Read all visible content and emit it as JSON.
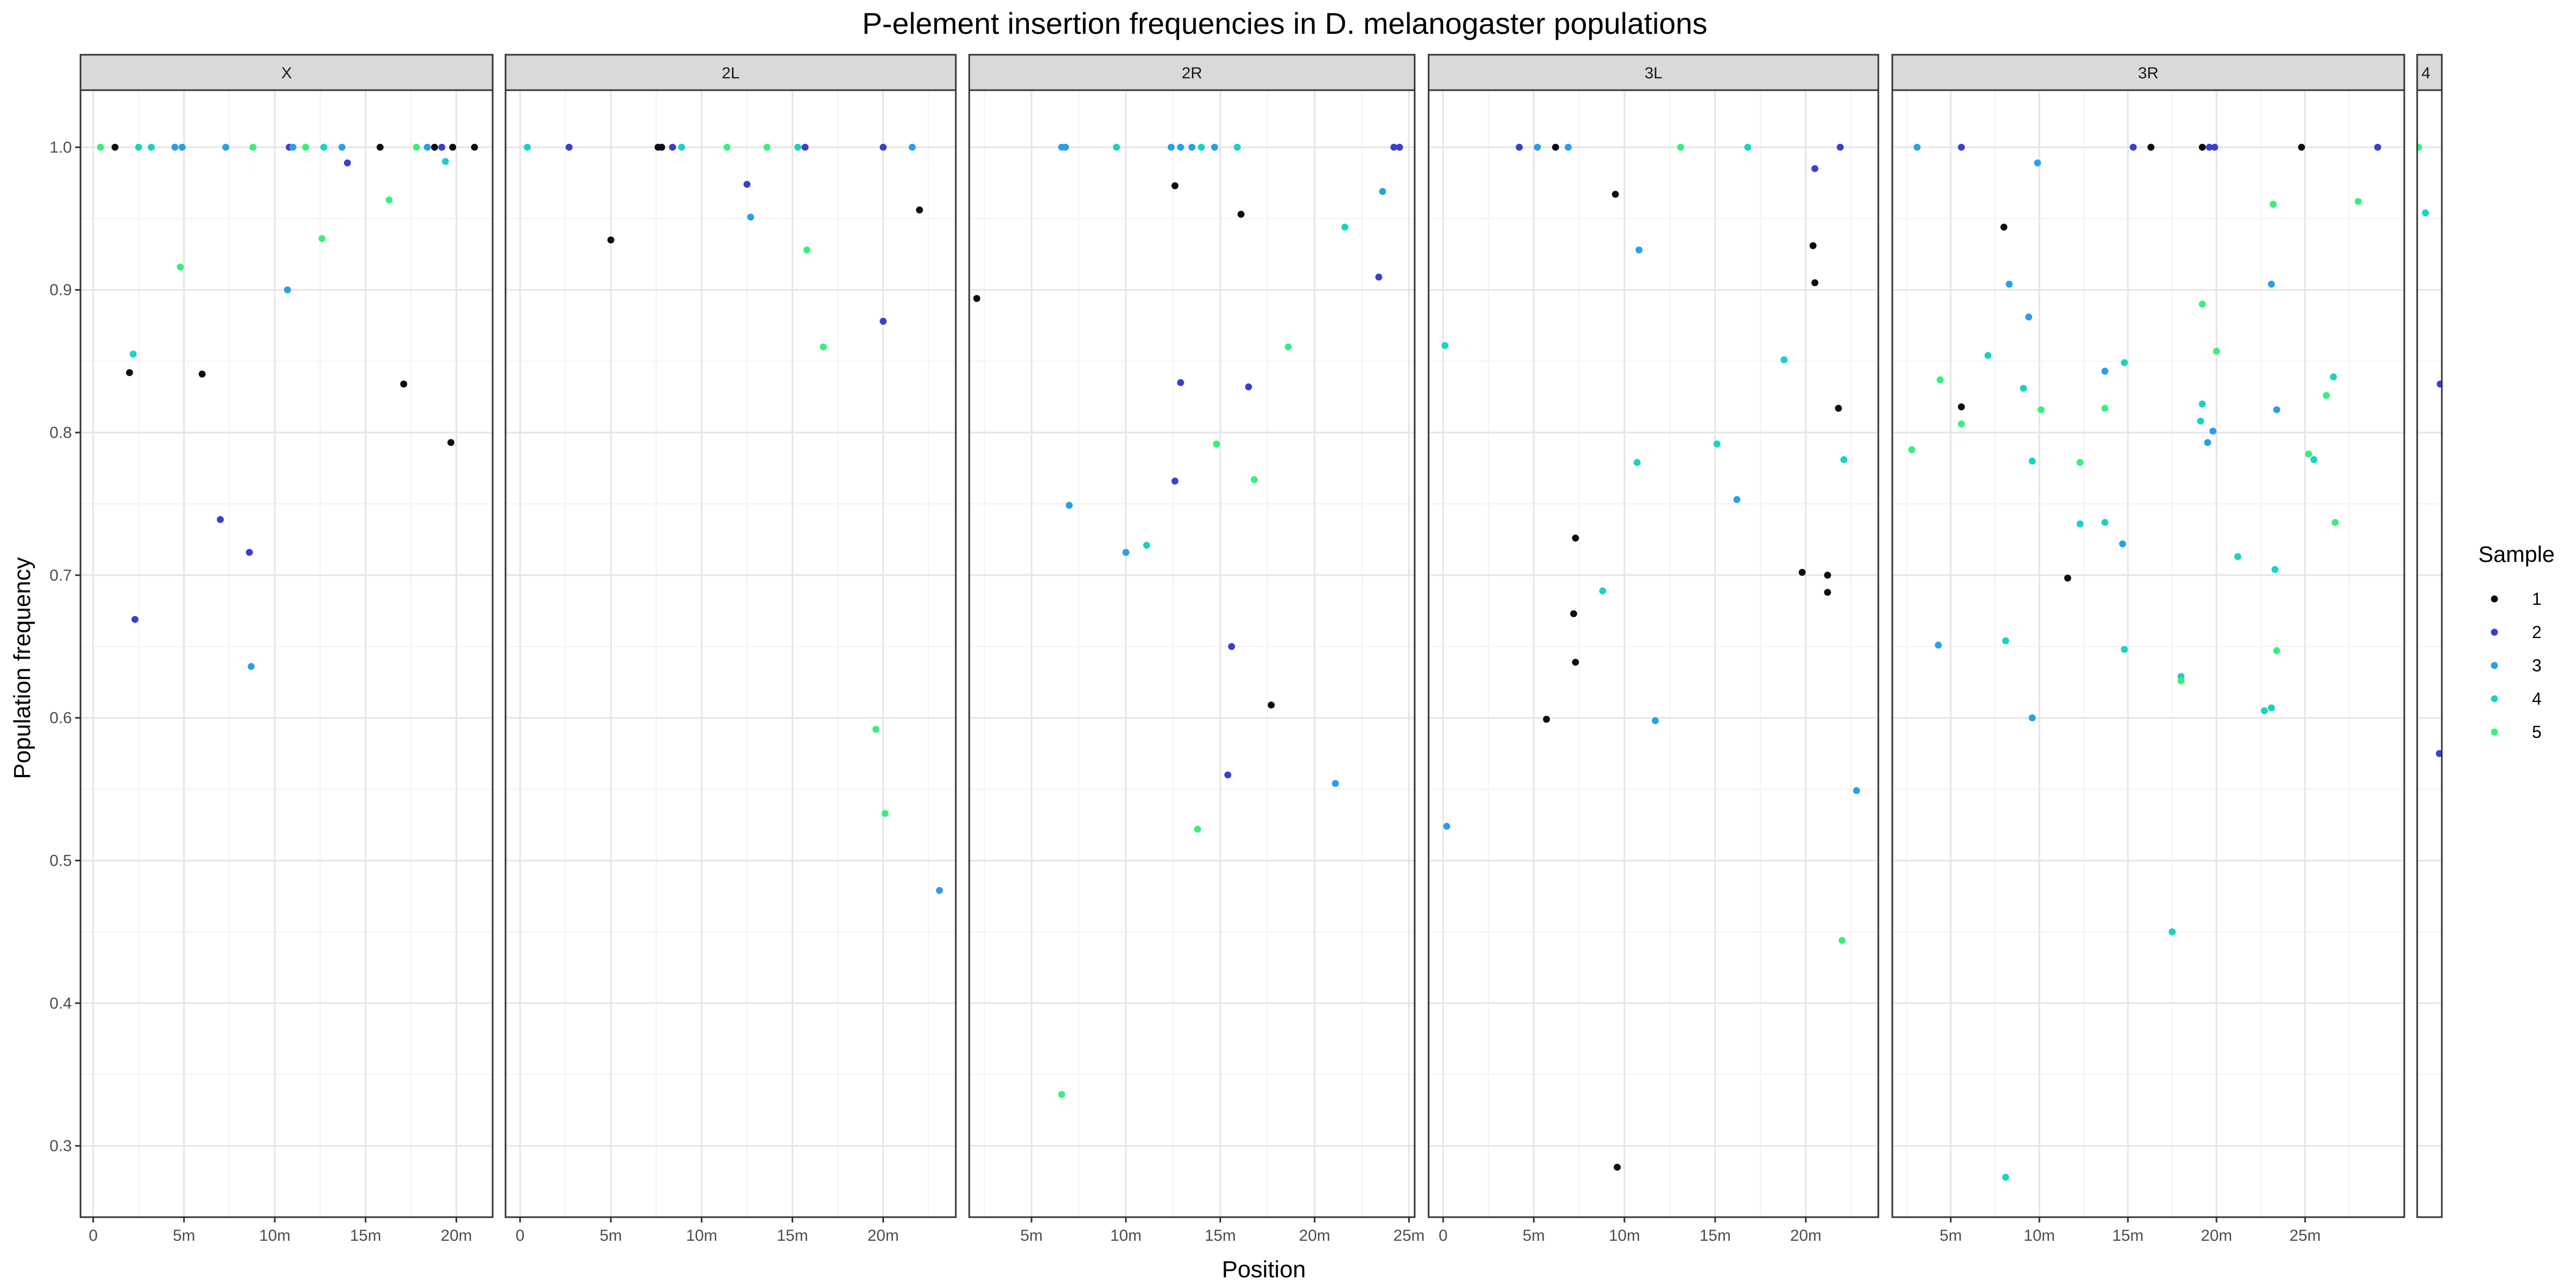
{
  "chart_data": {
    "type": "scatter",
    "title": "P-element insertion frequencies in D. melanogaster populations",
    "xlabel": "Position",
    "ylabel": "Population frequency",
    "ylim": [
      0.25,
      1.04
    ],
    "yticks": [
      0.3,
      0.4,
      0.5,
      0.6,
      0.7,
      0.8,
      0.9,
      1.0
    ],
    "ytick_labels": [
      "0.3",
      "0.4",
      "0.5",
      "0.6",
      "0.7",
      "0.8",
      "0.9",
      "1.0"
    ],
    "grid": true,
    "legend": {
      "title": "Sample",
      "position": "right",
      "entries": [
        {
          "label": "1",
          "color": "#0d0d1a"
        },
        {
          "label": "2",
          "color": "#3a3fce"
        },
        {
          "label": "3",
          "color": "#2a9fe6"
        },
        {
          "label": "4",
          "color": "#18d3c0"
        },
        {
          "label": "5",
          "color": "#38ef7d"
        }
      ]
    },
    "panels": [
      {
        "label": "X",
        "xlim": [
          -0.7,
          22.0
        ],
        "xticks": [
          0,
          5,
          10,
          15,
          20
        ],
        "xtick_labels": [
          "0",
          "5m",
          "10m",
          "15m",
          "20m"
        ],
        "points": [
          {
            "x": 1.2,
            "y": 1.0,
            "s": 1
          },
          {
            "x": 0.4,
            "y": 1.0,
            "s": 5
          },
          {
            "x": 2.5,
            "y": 1.0,
            "s": 4
          },
          {
            "x": 3.2,
            "y": 1.0,
            "s": 4
          },
          {
            "x": 4.5,
            "y": 1.0,
            "s": 3
          },
          {
            "x": 4.9,
            "y": 1.0,
            "s": 3
          },
          {
            "x": 7.3,
            "y": 1.0,
            "s": 3
          },
          {
            "x": 8.8,
            "y": 1.0,
            "s": 5
          },
          {
            "x": 10.8,
            "y": 1.0,
            "s": 2
          },
          {
            "x": 11.0,
            "y": 1.0,
            "s": 3
          },
          {
            "x": 11.7,
            "y": 1.0,
            "s": 5
          },
          {
            "x": 12.7,
            "y": 1.0,
            "s": 4
          },
          {
            "x": 13.7,
            "y": 1.0,
            "s": 3
          },
          {
            "x": 15.8,
            "y": 1.0,
            "s": 1
          },
          {
            "x": 17.8,
            "y": 1.0,
            "s": 5
          },
          {
            "x": 18.4,
            "y": 1.0,
            "s": 3
          },
          {
            "x": 18.8,
            "y": 1.0,
            "s": 1
          },
          {
            "x": 19.2,
            "y": 1.0,
            "s": 2
          },
          {
            "x": 19.8,
            "y": 1.0,
            "s": 1
          },
          {
            "x": 21.0,
            "y": 1.0,
            "s": 1
          },
          {
            "x": 14.0,
            "y": 0.989,
            "s": 2
          },
          {
            "x": 19.4,
            "y": 0.99,
            "s": 4
          },
          {
            "x": 16.3,
            "y": 0.963,
            "s": 5
          },
          {
            "x": 12.6,
            "y": 0.936,
            "s": 5
          },
          {
            "x": 4.8,
            "y": 0.916,
            "s": 5
          },
          {
            "x": 10.7,
            "y": 0.9,
            "s": 3
          },
          {
            "x": 2.2,
            "y": 0.855,
            "s": 4
          },
          {
            "x": 2.0,
            "y": 0.842,
            "s": 1
          },
          {
            "x": 6.0,
            "y": 0.841,
            "s": 1
          },
          {
            "x": 17.1,
            "y": 0.834,
            "s": 1
          },
          {
            "x": 19.7,
            "y": 0.793,
            "s": 1
          },
          {
            "x": 7.0,
            "y": 0.739,
            "s": 2
          },
          {
            "x": 8.6,
            "y": 0.716,
            "s": 2
          },
          {
            "x": 2.3,
            "y": 0.669,
            "s": 2
          },
          {
            "x": 8.7,
            "y": 0.636,
            "s": 3
          }
        ]
      },
      {
        "label": "2L",
        "xlim": [
          -0.8,
          24.0
        ],
        "xticks": [
          0,
          5,
          10,
          15,
          20
        ],
        "xtick_labels": [
          "0",
          "5m",
          "10m",
          "15m",
          "20m"
        ],
        "points": [
          {
            "x": 0.4,
            "y": 1.0,
            "s": 4
          },
          {
            "x": 2.7,
            "y": 1.0,
            "s": 2
          },
          {
            "x": 7.6,
            "y": 1.0,
            "s": 1
          },
          {
            "x": 7.8,
            "y": 1.0,
            "s": 1
          },
          {
            "x": 8.4,
            "y": 1.0,
            "s": 2
          },
          {
            "x": 8.9,
            "y": 1.0,
            "s": 4
          },
          {
            "x": 11.4,
            "y": 1.0,
            "s": 5
          },
          {
            "x": 13.6,
            "y": 1.0,
            "s": 5
          },
          {
            "x": 15.3,
            "y": 1.0,
            "s": 4
          },
          {
            "x": 15.7,
            "y": 1.0,
            "s": 2
          },
          {
            "x": 20.0,
            "y": 1.0,
            "s": 2
          },
          {
            "x": 21.6,
            "y": 1.0,
            "s": 3
          },
          {
            "x": 12.5,
            "y": 0.974,
            "s": 2
          },
          {
            "x": 22.0,
            "y": 0.956,
            "s": 1
          },
          {
            "x": 12.7,
            "y": 0.951,
            "s": 3
          },
          {
            "x": 5.0,
            "y": 0.935,
            "s": 1
          },
          {
            "x": 15.8,
            "y": 0.928,
            "s": 5
          },
          {
            "x": 20.0,
            "y": 0.878,
            "s": 2
          },
          {
            "x": 16.7,
            "y": 0.86,
            "s": 5
          },
          {
            "x": 19.6,
            "y": 0.592,
            "s": 5
          },
          {
            "x": 20.1,
            "y": 0.533,
            "s": 5
          },
          {
            "x": 23.1,
            "y": 0.479,
            "s": 3
          }
        ]
      },
      {
        "label": "2R",
        "xlim": [
          1.7,
          25.3
        ],
        "xticks": [
          5,
          10,
          15,
          20,
          25
        ],
        "xtick_labels": [
          "5m",
          "10m",
          "15m",
          "20m",
          "25m"
        ],
        "points": [
          {
            "x": 6.6,
            "y": 1.0,
            "s": 3
          },
          {
            "x": 6.8,
            "y": 1.0,
            "s": 3
          },
          {
            "x": 9.5,
            "y": 1.0,
            "s": 4
          },
          {
            "x": 12.4,
            "y": 1.0,
            "s": 3
          },
          {
            "x": 12.9,
            "y": 1.0,
            "s": 3
          },
          {
            "x": 13.5,
            "y": 1.0,
            "s": 3
          },
          {
            "x": 14.0,
            "y": 1.0,
            "s": 4
          },
          {
            "x": 14.7,
            "y": 1.0,
            "s": 3
          },
          {
            "x": 15.9,
            "y": 1.0,
            "s": 4
          },
          {
            "x": 24.2,
            "y": 1.0,
            "s": 2
          },
          {
            "x": 24.5,
            "y": 1.0,
            "s": 2
          },
          {
            "x": 12.6,
            "y": 0.973,
            "s": 1
          },
          {
            "x": 23.6,
            "y": 0.969,
            "s": 3
          },
          {
            "x": 16.1,
            "y": 0.953,
            "s": 1
          },
          {
            "x": 21.6,
            "y": 0.944,
            "s": 4
          },
          {
            "x": 23.4,
            "y": 0.909,
            "s": 2
          },
          {
            "x": 2.1,
            "y": 0.894,
            "s": 1
          },
          {
            "x": 18.6,
            "y": 0.86,
            "s": 5
          },
          {
            "x": 12.9,
            "y": 0.835,
            "s": 2
          },
          {
            "x": 16.5,
            "y": 0.832,
            "s": 2
          },
          {
            "x": 14.8,
            "y": 0.792,
            "s": 5
          },
          {
            "x": 16.8,
            "y": 0.767,
            "s": 5
          },
          {
            "x": 12.6,
            "y": 0.766,
            "s": 2
          },
          {
            "x": 7.0,
            "y": 0.749,
            "s": 3
          },
          {
            "x": 11.1,
            "y": 0.721,
            "s": 4
          },
          {
            "x": 10.0,
            "y": 0.716,
            "s": 3
          },
          {
            "x": 15.6,
            "y": 0.65,
            "s": 2
          },
          {
            "x": 17.7,
            "y": 0.609,
            "s": 1
          },
          {
            "x": 15.4,
            "y": 0.56,
            "s": 2
          },
          {
            "x": 21.1,
            "y": 0.554,
            "s": 3
          },
          {
            "x": 13.8,
            "y": 0.522,
            "s": 5
          },
          {
            "x": 6.6,
            "y": 0.336,
            "s": 5
          }
        ]
      },
      {
        "label": "3L",
        "xlim": [
          -0.8,
          24.0
        ],
        "xticks": [
          0,
          5,
          10,
          15,
          20
        ],
        "xtick_labels": [
          "0",
          "5m",
          "10m",
          "15m",
          "20m"
        ],
        "points": [
          {
            "x": 4.2,
            "y": 1.0,
            "s": 2
          },
          {
            "x": 5.2,
            "y": 1.0,
            "s": 3
          },
          {
            "x": 6.2,
            "y": 1.0,
            "s": 1
          },
          {
            "x": 6.9,
            "y": 1.0,
            "s": 3
          },
          {
            "x": 13.1,
            "y": 1.0,
            "s": 5
          },
          {
            "x": 16.8,
            "y": 1.0,
            "s": 4
          },
          {
            "x": 21.9,
            "y": 1.0,
            "s": 2
          },
          {
            "x": 20.5,
            "y": 0.985,
            "s": 2
          },
          {
            "x": 9.5,
            "y": 0.967,
            "s": 1
          },
          {
            "x": 20.4,
            "y": 0.931,
            "s": 1
          },
          {
            "x": 10.8,
            "y": 0.928,
            "s": 3
          },
          {
            "x": 20.5,
            "y": 0.905,
            "s": 1
          },
          {
            "x": 0.1,
            "y": 0.861,
            "s": 4
          },
          {
            "x": 18.8,
            "y": 0.851,
            "s": 4
          },
          {
            "x": 21.8,
            "y": 0.817,
            "s": 1
          },
          {
            "x": 15.1,
            "y": 0.792,
            "s": 4
          },
          {
            "x": 10.7,
            "y": 0.779,
            "s": 4
          },
          {
            "x": 22.1,
            "y": 0.781,
            "s": 4
          },
          {
            "x": 16.2,
            "y": 0.753,
            "s": 3
          },
          {
            "x": 7.3,
            "y": 0.726,
            "s": 1
          },
          {
            "x": 19.8,
            "y": 0.702,
            "s": 1
          },
          {
            "x": 21.2,
            "y": 0.7,
            "s": 1
          },
          {
            "x": 21.2,
            "y": 0.688,
            "s": 1
          },
          {
            "x": 8.8,
            "y": 0.689,
            "s": 4
          },
          {
            "x": 7.2,
            "y": 0.673,
            "s": 1
          },
          {
            "x": 7.3,
            "y": 0.639,
            "s": 1
          },
          {
            "x": 5.7,
            "y": 0.599,
            "s": 1
          },
          {
            "x": 11.7,
            "y": 0.598,
            "s": 3
          },
          {
            "x": 22.8,
            "y": 0.549,
            "s": 3
          },
          {
            "x": 0.2,
            "y": 0.524,
            "s": 3
          },
          {
            "x": 22.0,
            "y": 0.444,
            "s": 5
          },
          {
            "x": 9.6,
            "y": 0.285,
            "s": 1
          }
        ]
      },
      {
        "label": "3R",
        "xlim": [
          1.7,
          30.6
        ],
        "xticks": [
          5,
          10,
          15,
          20,
          25
        ],
        "xtick_labels": [
          "5m",
          "10m",
          "15m",
          "20m",
          "25m"
        ],
        "points": [
          {
            "x": 3.1,
            "y": 1.0,
            "s": 3
          },
          {
            "x": 5.6,
            "y": 1.0,
            "s": 2
          },
          {
            "x": 15.3,
            "y": 1.0,
            "s": 2
          },
          {
            "x": 16.3,
            "y": 1.0,
            "s": 1
          },
          {
            "x": 19.2,
            "y": 1.0,
            "s": 1
          },
          {
            "x": 19.6,
            "y": 1.0,
            "s": 2
          },
          {
            "x": 19.9,
            "y": 1.0,
            "s": 2
          },
          {
            "x": 24.8,
            "y": 1.0,
            "s": 1
          },
          {
            "x": 29.1,
            "y": 1.0,
            "s": 2
          },
          {
            "x": 9.9,
            "y": 0.989,
            "s": 3
          },
          {
            "x": 23.2,
            "y": 0.96,
            "s": 5
          },
          {
            "x": 28.0,
            "y": 0.962,
            "s": 5
          },
          {
            "x": 8.0,
            "y": 0.944,
            "s": 1
          },
          {
            "x": 8.3,
            "y": 0.904,
            "s": 3
          },
          {
            "x": 23.1,
            "y": 0.904,
            "s": 3
          },
          {
            "x": 19.2,
            "y": 0.89,
            "s": 5
          },
          {
            "x": 9.4,
            "y": 0.881,
            "s": 3
          },
          {
            "x": 20.0,
            "y": 0.857,
            "s": 5
          },
          {
            "x": 7.1,
            "y": 0.854,
            "s": 4
          },
          {
            "x": 14.8,
            "y": 0.849,
            "s": 4
          },
          {
            "x": 13.7,
            "y": 0.843,
            "s": 3
          },
          {
            "x": 26.6,
            "y": 0.839,
            "s": 4
          },
          {
            "x": 4.4,
            "y": 0.837,
            "s": 5
          },
          {
            "x": 9.1,
            "y": 0.831,
            "s": 4
          },
          {
            "x": 26.2,
            "y": 0.826,
            "s": 5
          },
          {
            "x": 19.2,
            "y": 0.82,
            "s": 4
          },
          {
            "x": 5.6,
            "y": 0.818,
            "s": 1
          },
          {
            "x": 13.7,
            "y": 0.817,
            "s": 5
          },
          {
            "x": 23.4,
            "y": 0.816,
            "s": 3
          },
          {
            "x": 10.1,
            "y": 0.816,
            "s": 5
          },
          {
            "x": 19.1,
            "y": 0.808,
            "s": 4
          },
          {
            "x": 5.6,
            "y": 0.806,
            "s": 5
          },
          {
            "x": 19.8,
            "y": 0.801,
            "s": 3
          },
          {
            "x": 19.5,
            "y": 0.793,
            "s": 3
          },
          {
            "x": 2.8,
            "y": 0.788,
            "s": 5
          },
          {
            "x": 25.2,
            "y": 0.785,
            "s": 5
          },
          {
            "x": 25.5,
            "y": 0.781,
            "s": 4
          },
          {
            "x": 9.6,
            "y": 0.78,
            "s": 4
          },
          {
            "x": 12.3,
            "y": 0.779,
            "s": 5
          },
          {
            "x": 26.7,
            "y": 0.737,
            "s": 5
          },
          {
            "x": 12.3,
            "y": 0.736,
            "s": 4
          },
          {
            "x": 13.7,
            "y": 0.737,
            "s": 4
          },
          {
            "x": 14.7,
            "y": 0.722,
            "s": 3
          },
          {
            "x": 21.2,
            "y": 0.713,
            "s": 4
          },
          {
            "x": 23.3,
            "y": 0.704,
            "s": 4
          },
          {
            "x": 11.6,
            "y": 0.698,
            "s": 1
          },
          {
            "x": 8.1,
            "y": 0.654,
            "s": 4
          },
          {
            "x": 4.3,
            "y": 0.651,
            "s": 3
          },
          {
            "x": 14.8,
            "y": 0.648,
            "s": 4
          },
          {
            "x": 23.4,
            "y": 0.647,
            "s": 5
          },
          {
            "x": 18.0,
            "y": 0.629,
            "s": 4
          },
          {
            "x": 18.0,
            "y": 0.626,
            "s": 5
          },
          {
            "x": 23.1,
            "y": 0.607,
            "s": 4
          },
          {
            "x": 22.7,
            "y": 0.605,
            "s": 4
          },
          {
            "x": 9.6,
            "y": 0.6,
            "s": 3
          },
          {
            "x": 17.5,
            "y": 0.45,
            "s": 4
          },
          {
            "x": 8.1,
            "y": 0.278,
            "s": 4
          }
        ]
      },
      {
        "label": "4",
        "xlim": [
          0,
          1.2
        ],
        "xticks": [],
        "xtick_labels": [],
        "points": [
          {
            "x": 0.07,
            "y": 1.0,
            "s": 5
          },
          {
            "x": 0.4,
            "y": 0.954,
            "s": 4
          },
          {
            "x": 1.12,
            "y": 0.834,
            "s": 2
          },
          {
            "x": 1.08,
            "y": 0.575,
            "s": 2
          }
        ]
      }
    ]
  }
}
